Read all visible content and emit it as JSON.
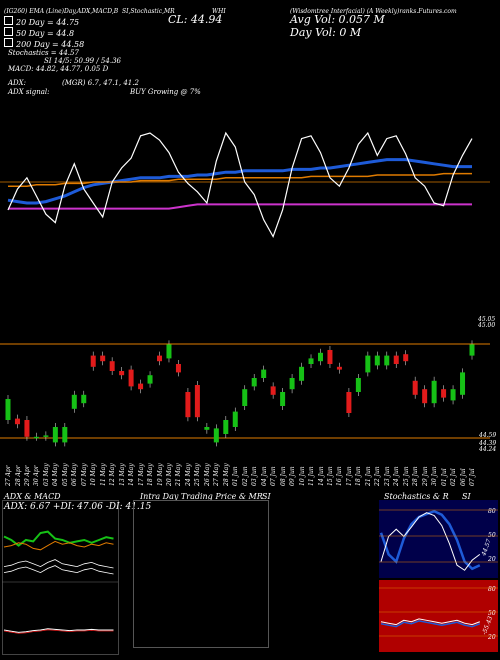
{
  "header": {
    "top_left": "(IG260) EMA (Line)Day,ADX,MACD,B",
    "top_mid": "SI,Stochastic,MR",
    "top_right": "(Wisdomtree  Interfacial) (A  Weekly)ranks.Futures.com",
    "ticker": "WHI",
    "cl_label": "CL: 44.94",
    "avg_vol": "Avg Vol: 0.057 M",
    "day_vol": "Day Vol: 0   M",
    "legend": [
      {
        "label": "20  Day = 44.75",
        "color": "#ffffff"
      },
      {
        "label": "50  Day = 44.8",
        "color": "#ffffff"
      },
      {
        "label": "200  Day = 44.58",
        "color": "#ffffff"
      }
    ],
    "stoch_line": "Stochastics = 44.57",
    "si_line": "SI 14/5: 50.99 / 54.36",
    "macd_line": "MACD: 44.82, 44.77, 0.05 D",
    "adx_line": "ADX:",
    "adx_vals": "(MGR) 6.7,  47.1,  41.2",
    "adx_signal": "ADX  signal:",
    "buy_signal": "BUY Growing @ 7%"
  },
  "price_axis": {
    "top_ticks": [
      "45.05",
      "45.00"
    ],
    "bottom_ticks": [
      "44.59",
      "44.39",
      "44.24"
    ]
  },
  "dates": [
    "27 Apr",
    "28 Apr",
    "29 Apr",
    "30 Apr",
    "03 May",
    "04 May",
    "05 May",
    "06 May",
    "07 May",
    "10 May",
    "11 May",
    "12 May",
    "13 May",
    "14 May",
    "17 May",
    "18 May",
    "19 May",
    "20 May",
    "21 May",
    "24 May",
    "25 May",
    "26 May",
    "27 May",
    "28 May",
    "01 Jun",
    "02 Jun",
    "03 Jun",
    "04 Jun",
    "07 Jun",
    "08 Jun",
    "09 Jun",
    "10 Jun",
    "11 Jun",
    "14 Jun",
    "15 Jun",
    "16 Jun",
    "17 Jun",
    "18 Jun",
    "21 Jun",
    "22 Jun",
    "23 Jun",
    "24 Jun",
    "25 Jun",
    "28 Jun",
    "29 Jun",
    "30 Jun",
    "01 Jul",
    "02 Jul",
    "06 Jul",
    "07 Jul"
  ],
  "bottom_panels": {
    "adx_title": "ADX  & MACD",
    "adx_values": "ADX: 6.67  +DI: 47.06  -DI: 41.15",
    "mr_title": "Intra  Day Trading Price  & MR",
    "si_label": "SI",
    "stoch_title": "Stochastics & R",
    "stoch_si_label": "SI",
    "stoch_ticks": [
      "80",
      "50",
      "20"
    ],
    "stoch_value_label": "44.57",
    "r_ticks": [
      "80",
      "50",
      "20"
    ],
    "r_value_label": "-55.43"
  },
  "colors": {
    "green": "#16c116",
    "red": "#e21b1b",
    "orange": "#e07b00",
    "blue": "#1e5bd8",
    "magenta": "#cc33cc",
    "navy": "#00004a",
    "darkred": "#b00000"
  },
  "chart_data": {
    "type": "line",
    "title": "WHI",
    "series": [
      {
        "name": "20  Day = 44.75",
        "values": [
          0.32,
          0.31,
          0.3,
          0.3,
          0.31,
          0.33,
          0.35,
          0.38,
          0.41,
          0.43,
          0.44,
          0.45,
          0.46,
          0.47,
          0.48,
          0.48,
          0.48,
          0.49,
          0.49,
          0.49,
          0.5,
          0.5,
          0.51,
          0.52,
          0.52,
          0.53,
          0.53,
          0.53,
          0.53,
          0.53,
          0.54,
          0.54,
          0.54,
          0.55,
          0.55,
          0.56,
          0.57,
          0.58,
          0.59,
          0.6,
          0.61,
          0.61,
          0.61,
          0.6,
          0.59,
          0.58,
          0.57,
          0.56,
          0.56,
          0.56
        ]
      },
      {
        "name": "50  Day = 44.8",
        "values": [
          0.42,
          0.42,
          0.42,
          0.43,
          0.43,
          0.43,
          0.44,
          0.44,
          0.44,
          0.45,
          0.45,
          0.45,
          0.45,
          0.45,
          0.46,
          0.46,
          0.46,
          0.46,
          0.47,
          0.47,
          0.47,
          0.47,
          0.47,
          0.48,
          0.48,
          0.48,
          0.48,
          0.48,
          0.48,
          0.48,
          0.48,
          0.48,
          0.49,
          0.49,
          0.49,
          0.49,
          0.49,
          0.49,
          0.49,
          0.5,
          0.5,
          0.5,
          0.5,
          0.5,
          0.5,
          0.5,
          0.51,
          0.51,
          0.51,
          0.51
        ]
      },
      {
        "name": "200  Day = 44.58",
        "values": [
          0.26,
          0.26,
          0.26,
          0.26,
          0.26,
          0.26,
          0.26,
          0.26,
          0.26,
          0.26,
          0.26,
          0.26,
          0.26,
          0.26,
          0.26,
          0.26,
          0.26,
          0.26,
          0.27,
          0.28,
          0.29,
          0.29,
          0.29,
          0.29,
          0.29,
          0.29,
          0.29,
          0.29,
          0.29,
          0.29,
          0.29,
          0.29,
          0.29,
          0.29,
          0.29,
          0.29,
          0.29,
          0.29,
          0.29,
          0.29,
          0.29,
          0.29,
          0.29,
          0.29,
          0.29,
          0.29,
          0.29,
          0.29,
          0.29,
          0.29
        ]
      },
      {
        "name": "Stochastics",
        "values": [
          0.25,
          0.4,
          0.48,
          0.35,
          0.22,
          0.16,
          0.42,
          0.58,
          0.4,
          0.3,
          0.2,
          0.45,
          0.55,
          0.62,
          0.78,
          0.8,
          0.75,
          0.66,
          0.52,
          0.44,
          0.38,
          0.3,
          0.6,
          0.8,
          0.7,
          0.45,
          0.36,
          0.18,
          0.06,
          0.25,
          0.55,
          0.76,
          0.78,
          0.66,
          0.48,
          0.42,
          0.55,
          0.72,
          0.8,
          0.64,
          0.76,
          0.78,
          0.65,
          0.48,
          0.42,
          0.3,
          0.28,
          0.5,
          0.64,
          0.76
        ]
      }
    ],
    "candles": [
      {
        "d": "27 Apr",
        "o": 44.55,
        "c": 44.4,
        "up": true
      },
      {
        "d": "28 Apr",
        "o": 44.41,
        "c": 44.37,
        "up": false
      },
      {
        "d": "29 Apr",
        "o": 44.4,
        "c": 44.28,
        "up": false
      },
      {
        "d": "30 Apr",
        "o": 44.28,
        "c": 44.28,
        "up": true
      },
      {
        "d": "03 May",
        "o": 44.28,
        "c": 44.29,
        "up": true
      },
      {
        "d": "04 May",
        "o": 44.35,
        "c": 44.24,
        "up": true
      },
      {
        "d": "05 May",
        "o": 44.35,
        "c": 44.24,
        "up": true
      },
      {
        "d": "06 May",
        "o": 44.58,
        "c": 44.48,
        "up": true
      },
      {
        "d": "07 May",
        "o": 44.58,
        "c": 44.52,
        "up": true
      },
      {
        "d": "10 May",
        "o": 44.78,
        "c": 44.86,
        "up": false
      },
      {
        "d": "11 May",
        "o": 44.86,
        "c": 44.82,
        "up": false
      },
      {
        "d": "12 May",
        "o": 44.82,
        "c": 44.75,
        "up": false
      },
      {
        "d": "13 May",
        "o": 44.75,
        "c": 44.72,
        "up": false
      },
      {
        "d": "14 May",
        "o": 44.76,
        "c": 44.64,
        "up": false
      },
      {
        "d": "17 May",
        "o": 44.62,
        "c": 44.66,
        "up": false
      },
      {
        "d": "18 May",
        "o": 44.72,
        "c": 44.66,
        "up": true
      },
      {
        "d": "19 May",
        "o": 44.86,
        "c": 44.82,
        "up": false
      },
      {
        "d": "20 May",
        "o": 44.94,
        "c": 44.84,
        "up": true
      },
      {
        "d": "21 May",
        "o": 44.8,
        "c": 44.74,
        "up": false
      },
      {
        "d": "24 May",
        "o": 44.6,
        "c": 44.42,
        "up": false
      },
      {
        "d": "25 May",
        "o": 44.65,
        "c": 44.42,
        "up": false
      },
      {
        "d": "26 May",
        "o": 44.35,
        "c": 44.33,
        "up": true
      },
      {
        "d": "27 May",
        "o": 44.34,
        "c": 44.24,
        "up": true
      },
      {
        "d": "28 May",
        "o": 44.4,
        "c": 44.3,
        "up": true
      },
      {
        "d": "01 Jun",
        "o": 44.46,
        "c": 44.35,
        "up": true
      },
      {
        "d": "02 Jun",
        "o": 44.62,
        "c": 44.5,
        "up": true
      },
      {
        "d": "03 Jun",
        "o": 44.7,
        "c": 44.64,
        "up": true
      },
      {
        "d": "04 Jun",
        "o": 44.76,
        "c": 44.7,
        "up": true
      },
      {
        "d": "07 Jun",
        "o": 44.64,
        "c": 44.58,
        "up": false
      },
      {
        "d": "08 Jun",
        "o": 44.6,
        "c": 44.5,
        "up": true
      },
      {
        "d": "09 Jun",
        "o": 44.7,
        "c": 44.62,
        "up": true
      },
      {
        "d": "10 Jun",
        "o": 44.78,
        "c": 44.68,
        "up": true
      },
      {
        "d": "11 Jun",
        "o": 44.84,
        "c": 44.8,
        "up": true
      },
      {
        "d": "14 Jun",
        "o": 44.88,
        "c": 44.82,
        "up": true
      },
      {
        "d": "15 Jun",
        "o": 44.9,
        "c": 44.8,
        "up": false
      },
      {
        "d": "16 Jun",
        "o": 44.76,
        "c": 44.78,
        "up": false
      },
      {
        "d": "17 Jun",
        "o": 44.6,
        "c": 44.45,
        "up": false
      },
      {
        "d": "18 Jun",
        "o": 44.7,
        "c": 44.6,
        "up": true
      },
      {
        "d": "21 Jun",
        "o": 44.86,
        "c": 44.74,
        "up": true
      },
      {
        "d": "22 Jun",
        "o": 44.86,
        "c": 44.79,
        "up": true
      },
      {
        "d": "23 Jun",
        "o": 44.86,
        "c": 44.79,
        "up": true
      },
      {
        "d": "24 Jun",
        "o": 44.86,
        "c": 44.8,
        "up": false
      },
      {
        "d": "25 Jun",
        "o": 44.87,
        "c": 44.82,
        "up": false
      },
      {
        "d": "28 Jun",
        "o": 44.68,
        "c": 44.58,
        "up": false
      },
      {
        "d": "29 Jun",
        "o": 44.62,
        "c": 44.52,
        "up": false
      },
      {
        "d": "30 Jun",
        "o": 44.68,
        "c": 44.52,
        "up": true
      },
      {
        "d": "01 Jul",
        "o": 44.62,
        "c": 44.56,
        "up": false
      },
      {
        "d": "02 Jul",
        "o": 44.62,
        "c": 44.54,
        "up": true
      },
      {
        "d": "06 Jul",
        "o": 44.74,
        "c": 44.58,
        "up": true
      },
      {
        "d": "07 Jul",
        "o": 44.94,
        "c": 44.86,
        "up": true
      }
    ],
    "ylim": [
      44.2,
      45.1
    ],
    "xlabel": "",
    "ylabel": ""
  }
}
